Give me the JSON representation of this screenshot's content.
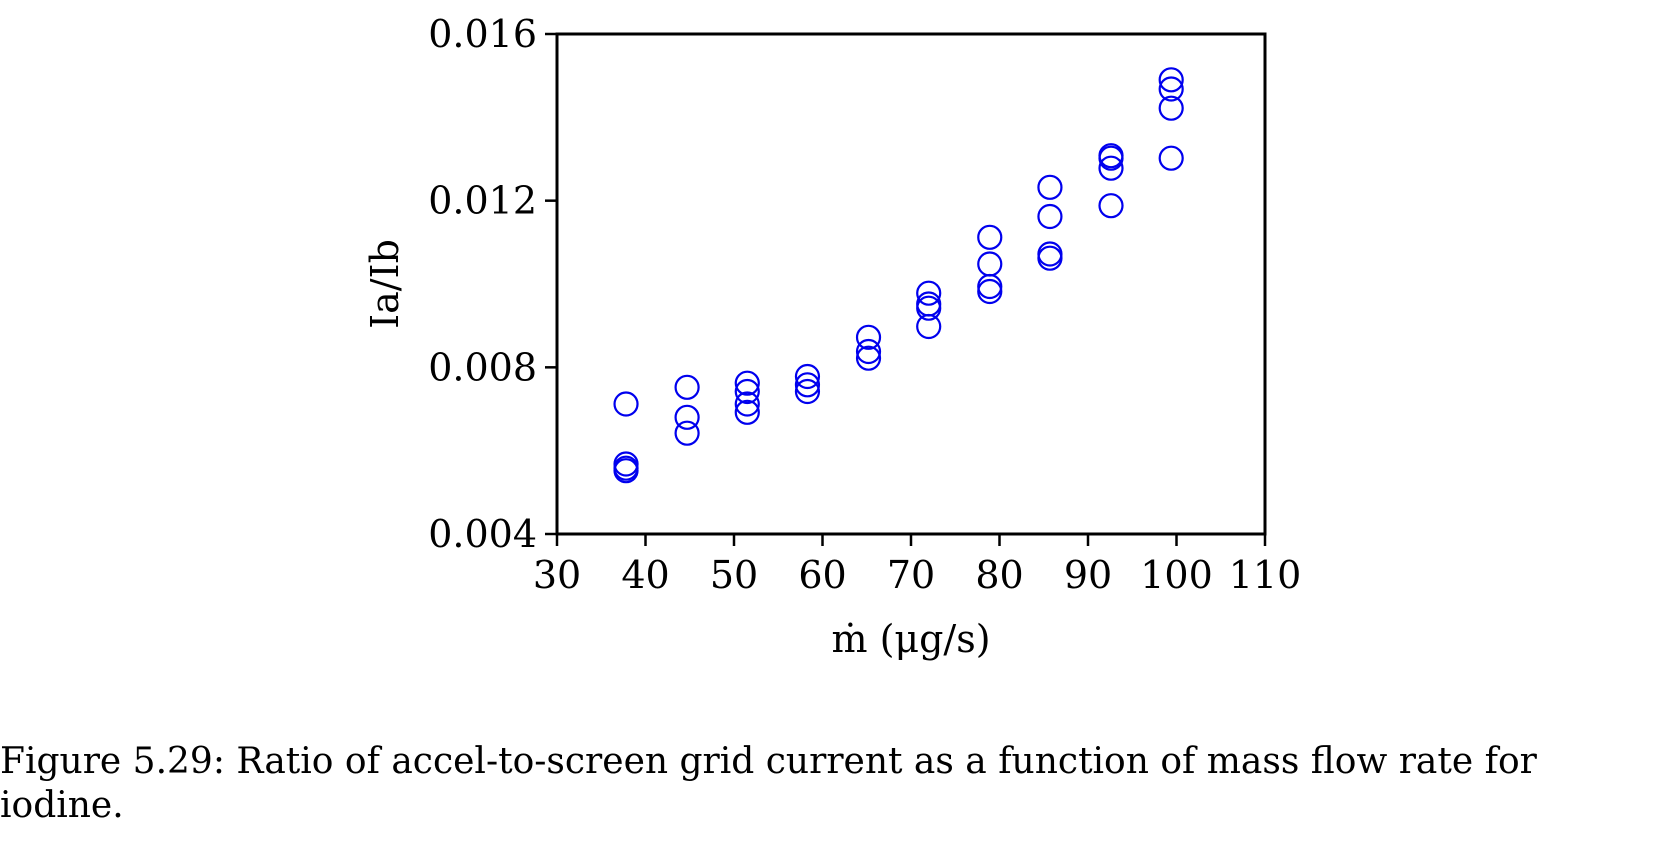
{
  "caption": "Figure 5.29: Ratio of accel-to-screen grid current as a function of mass flow rate for iodine.",
  "chart_data": {
    "type": "scatter",
    "xlabel": "ṁ (μg/s)",
    "ylabel": "Ia/Ib",
    "xlim": [
      30,
      110
    ],
    "ylim": [
      0.004,
      0.016
    ],
    "xticks": [
      "30",
      "40",
      "50",
      "60",
      "70",
      "80",
      "90",
      "100",
      "110"
    ],
    "xtick_values": [
      30,
      40,
      50,
      60,
      70,
      80,
      90,
      100,
      110
    ],
    "yticks": [
      "0.004",
      "0.008",
      "0.012",
      "0.016"
    ],
    "ytick_values": [
      0.004,
      0.008,
      0.012,
      0.016
    ],
    "grid": false,
    "marker": "open-circle",
    "marker_color": "#0000ee",
    "series": [
      {
        "points": [
          [
            37.8,
            0.00712
          ],
          [
            37.8,
            0.00568
          ],
          [
            37.8,
            0.00552
          ],
          [
            37.8,
            0.00558
          ],
          [
            44.7,
            0.00752
          ],
          [
            44.7,
            0.0068
          ],
          [
            44.7,
            0.00642
          ],
          [
            51.5,
            0.00762
          ],
          [
            51.5,
            0.00742
          ],
          [
            51.5,
            0.00692
          ],
          [
            51.5,
            0.00712
          ],
          [
            58.3,
            0.00742
          ],
          [
            58.3,
            0.00758
          ],
          [
            58.3,
            0.00778
          ],
          [
            65.2,
            0.00822
          ],
          [
            65.2,
            0.00838
          ],
          [
            65.2,
            0.00872
          ],
          [
            72.0,
            0.00898
          ],
          [
            72.0,
            0.00942
          ],
          [
            72.0,
            0.00952
          ],
          [
            72.0,
            0.00978
          ],
          [
            78.9,
            0.00982
          ],
          [
            78.9,
            0.00994
          ],
          [
            78.9,
            0.01048
          ],
          [
            78.9,
            0.01112
          ],
          [
            85.7,
            0.01062
          ],
          [
            85.7,
            0.01072
          ],
          [
            85.7,
            0.01162
          ],
          [
            85.7,
            0.01232
          ],
          [
            92.6,
            0.01188
          ],
          [
            92.6,
            0.01278
          ],
          [
            92.6,
            0.01302
          ],
          [
            92.6,
            0.01308
          ],
          [
            99.4,
            0.01302
          ],
          [
            99.4,
            0.01422
          ],
          [
            99.4,
            0.01468
          ],
          [
            99.4,
            0.0149
          ]
        ]
      }
    ]
  }
}
